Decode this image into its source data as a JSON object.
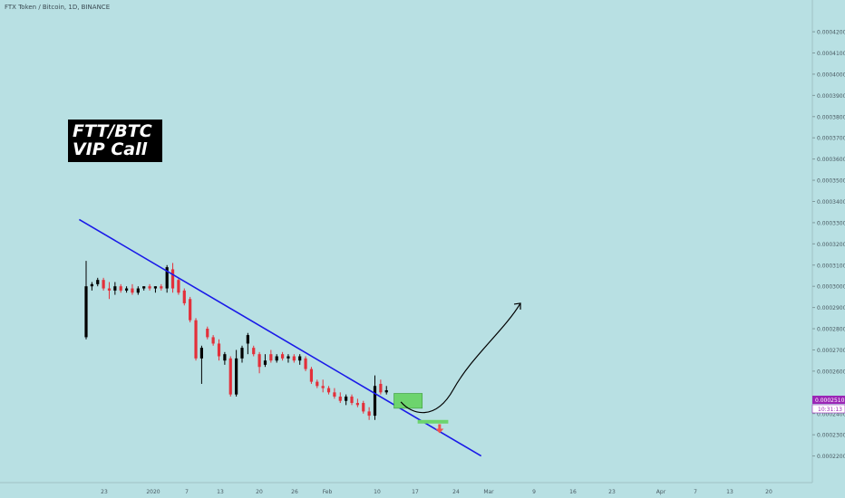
{
  "header": {
    "symbol_line": "FTX Token / Bitcoin, 1D, BINANCE"
  },
  "callout": {
    "line1": "FTT/BTC",
    "line2": "VIP Call"
  },
  "chart_data": {
    "type": "candlestick",
    "title": "FTX Token / Bitcoin, 1D, BINANCE",
    "xlabel": "",
    "ylabel": "",
    "ylim": [
      0.000213,
      0.000429
    ],
    "x_tick_labels": [
      "23",
      "2020",
      "7",
      "13",
      "20",
      "26",
      "Feb",
      "10",
      "17",
      "24",
      "Mar",
      "9",
      "16",
      "23",
      "Apr",
      "7",
      "13",
      "20"
    ],
    "y_tick_labels": [
      "0.0004200",
      "0.0004100",
      "0.0004000",
      "0.0003900",
      "0.0003800",
      "0.0003700",
      "0.0003600",
      "0.0003500",
      "0.0003400",
      "0.0003300",
      "0.0003200",
      "0.0003100",
      "0.0003000",
      "0.0002900",
      "0.0002800",
      "0.0002700",
      "0.0002600",
      "0.0002400",
      "0.0002300",
      "0.0002200"
    ],
    "y_tick_values": [
      0.00042,
      0.00041,
      0.0004,
      0.00039,
      0.00038,
      0.00037,
      0.00036,
      0.00035,
      0.00034,
      0.00033,
      0.00032,
      0.00031,
      0.0003,
      0.00029,
      0.00028,
      0.00027,
      0.00026,
      0.00024,
      0.00023,
      0.00022
    ],
    "last_price_label": "0.0002510",
    "countdown_label": "10:31:13",
    "candles": [
      {
        "o": 0.000276,
        "h": 0.000312,
        "l": 0.000275,
        "c": 0.0003
      },
      {
        "o": 0.0003,
        "h": 0.000302,
        "l": 0.000298,
        "c": 0.000301
      },
      {
        "o": 0.000301,
        "h": 0.000304,
        "l": 0.0003,
        "c": 0.000303
      },
      {
        "o": 0.000303,
        "h": 0.000304,
        "l": 0.000298,
        "c": 0.000299
      },
      {
        "o": 0.000299,
        "h": 0.000302,
        "l": 0.000294,
        "c": 0.000298
      },
      {
        "o": 0.000298,
        "h": 0.000302,
        "l": 0.000296,
        "c": 0.0003
      },
      {
        "o": 0.0003,
        "h": 0.000301,
        "l": 0.000297,
        "c": 0.000298
      },
      {
        "o": 0.000298,
        "h": 0.0003,
        "l": 0.000297,
        "c": 0.000299
      },
      {
        "o": 0.000299,
        "h": 0.000301,
        "l": 0.000296,
        "c": 0.000297
      },
      {
        "o": 0.000297,
        "h": 0.0003,
        "l": 0.000296,
        "c": 0.000299
      },
      {
        "o": 0.000299,
        "h": 0.0003,
        "l": 0.000298,
        "c": 0.0003
      },
      {
        "o": 0.0003,
        "h": 0.000301,
        "l": 0.000298,
        "c": 0.000299
      },
      {
        "o": 0.000299,
        "h": 0.0003,
        "l": 0.000297,
        "c": 0.0003
      },
      {
        "o": 0.0003,
        "h": 0.000301,
        "l": 0.000298,
        "c": 0.000299
      },
      {
        "o": 0.000299,
        "h": 0.00031,
        "l": 0.000297,
        "c": 0.000309
      },
      {
        "o": 0.000308,
        "h": 0.000311,
        "l": 0.000297,
        "c": 0.000299
      },
      {
        "o": 0.000303,
        "h": 0.000304,
        "l": 0.000296,
        "c": 0.000297
      },
      {
        "o": 0.000298,
        "h": 0.000299,
        "l": 0.000291,
        "c": 0.000292
      },
      {
        "o": 0.000294,
        "h": 0.000295,
        "l": 0.000283,
        "c": 0.000284
      },
      {
        "o": 0.000284,
        "h": 0.000285,
        "l": 0.000265,
        "c": 0.000266
      },
      {
        "o": 0.000266,
        "h": 0.000272,
        "l": 0.000254,
        "c": 0.000271
      },
      {
        "o": 0.00028,
        "h": 0.000281,
        "l": 0.000275,
        "c": 0.000276
      },
      {
        "o": 0.000276,
        "h": 0.000277,
        "l": 0.000272,
        "c": 0.000273
      },
      {
        "o": 0.000273,
        "h": 0.000275,
        "l": 0.000265,
        "c": 0.000267
      },
      {
        "o": 0.000265,
        "h": 0.000269,
        "l": 0.000263,
        "c": 0.000268
      },
      {
        "o": 0.000266,
        "h": 0.000267,
        "l": 0.000248,
        "c": 0.000249
      },
      {
        "o": 0.000249,
        "h": 0.00027,
        "l": 0.000248,
        "c": 0.000266
      },
      {
        "o": 0.000266,
        "h": 0.000272,
        "l": 0.000264,
        "c": 0.000271
      },
      {
        "o": 0.000273,
        "h": 0.000278,
        "l": 0.000268,
        "c": 0.000277
      },
      {
        "o": 0.000271,
        "h": 0.000272,
        "l": 0.000267,
        "c": 0.000268
      },
      {
        "o": 0.000268,
        "h": 0.000269,
        "l": 0.000259,
        "c": 0.000262
      },
      {
        "o": 0.000263,
        "h": 0.000268,
        "l": 0.000262,
        "c": 0.000265
      },
      {
        "o": 0.000268,
        "h": 0.00027,
        "l": 0.000264,
        "c": 0.000265
      },
      {
        "o": 0.000265,
        "h": 0.000268,
        "l": 0.000264,
        "c": 0.000267
      },
      {
        "o": 0.000268,
        "h": 0.000269,
        "l": 0.000265,
        "c": 0.000266
      },
      {
        "o": 0.000266,
        "h": 0.000268,
        "l": 0.000264,
        "c": 0.000267
      },
      {
        "o": 0.000267,
        "h": 0.000268,
        "l": 0.000264,
        "c": 0.000265
      },
      {
        "o": 0.000265,
        "h": 0.000268,
        "l": 0.000263,
        "c": 0.000267
      },
      {
        "o": 0.000266,
        "h": 0.000267,
        "l": 0.00026,
        "c": 0.000261
      },
      {
        "o": 0.000261,
        "h": 0.000262,
        "l": 0.000254,
        "c": 0.000255
      },
      {
        "o": 0.000255,
        "h": 0.000256,
        "l": 0.000252,
        "c": 0.000253
      },
      {
        "o": 0.000253,
        "h": 0.000256,
        "l": 0.00025,
        "c": 0.000252
      },
      {
        "o": 0.000252,
        "h": 0.000253,
        "l": 0.000249,
        "c": 0.00025
      },
      {
        "o": 0.00025,
        "h": 0.000252,
        "l": 0.000247,
        "c": 0.000248
      },
      {
        "o": 0.000248,
        "h": 0.00025,
        "l": 0.000245,
        "c": 0.000246
      },
      {
        "o": 0.000246,
        "h": 0.000249,
        "l": 0.000244,
        "c": 0.000248
      },
      {
        "o": 0.000248,
        "h": 0.000249,
        "l": 0.000244,
        "c": 0.000245
      },
      {
        "o": 0.000245,
        "h": 0.000247,
        "l": 0.000243,
        "c": 0.000244
      },
      {
        "o": 0.000245,
        "h": 0.000246,
        "l": 0.00024,
        "c": 0.000241
      },
      {
        "o": 0.000241,
        "h": 0.000243,
        "l": 0.000237,
        "c": 0.000239
      },
      {
        "o": 0.000239,
        "h": 0.000258,
        "l": 0.000237,
        "c": 0.000253
      },
      {
        "o": 0.000254,
        "h": 0.000256,
        "l": 0.000249,
        "c": 0.00025
      },
      {
        "o": 0.00025,
        "h": 0.000253,
        "l": 0.000249,
        "c": 0.000251
      }
    ],
    "annotations": {
      "trendline": {
        "color": "#1a1ae8",
        "start": {
          "bar": -1.2,
          "price": 0.0003315
        },
        "end": {
          "bar": 68.4,
          "price": 0.00022
        }
      },
      "buy_zone": {
        "color": "#6dd46d",
        "start_bar": 53.3,
        "end_bar": 58.2,
        "top": 0.0002495,
        "bottom": 0.0002425
      },
      "target_zone": {
        "color": "#6dd46d",
        "start_bar": 57.4,
        "end_bar": 62.7,
        "top": 0.000237,
        "bottom": 0.0002355
      },
      "projection_curve": {
        "color": "#000000",
        "start": {
          "bar": 54.5,
          "price": 0.0002455
        },
        "end": {
          "bar": 75.2,
          "price": 0.000292
        }
      },
      "down_arrow": {
        "color": "#ef5350",
        "bar": 61.2,
        "price": 0.000232
      }
    },
    "colors": {
      "background": "#b8e0e3",
      "up": "#000000",
      "down": "#e3303a",
      "price_label": "#9b26b6",
      "axis_text": "#4a5a62"
    }
  }
}
